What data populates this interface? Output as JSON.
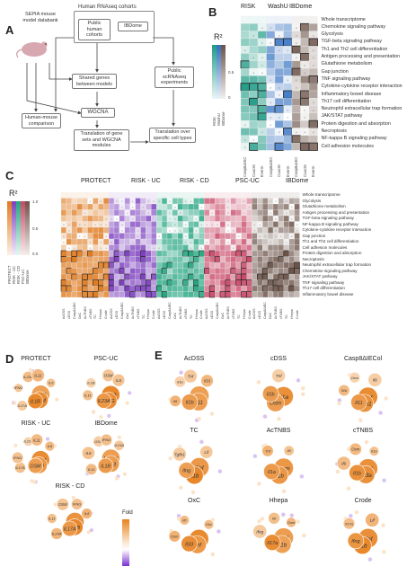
{
  "panel_letters": [
    "A",
    "B",
    "C",
    "D",
    "E"
  ],
  "panel_a": {
    "nodes": {
      "sepia": "SEPIA mouse model databank",
      "human_cohorts_title": "Human RNAseq cohorts",
      "public_human": "Public human cohorts",
      "ibdome": "IBDome",
      "shared_genes": "Shared genes between models",
      "public_scrna": "Public scRNAseq experiments",
      "wgcna": "WGCNA",
      "human_mouse": "Human-mouse comparison",
      "translation_gene_sets": "Translation of gene sets and WGCNA modules",
      "translation_cell_types": "Translation over specific cell types"
    }
  },
  "panel_b": {
    "cohorts": [
      "RISK",
      "WashU",
      "IBDome"
    ],
    "legend_title": "R²",
    "legend_ticks": [
      "0.5",
      "0"
    ],
    "legend_side_labels": [
      "RISK",
      "WashU",
      "IBDome"
    ],
    "rows": [
      "Whole transcriptome",
      "Chemokine signaling pathway",
      "Glycolysis",
      "TGF-beta signaling pathway",
      "Th1 and Th2 cell differentiation",
      "Antigen processing and presentation",
      "Glutathione metabolism",
      "Gap junction",
      "TNF signaling pathway",
      "Cytokine-cytokine receptor interaction",
      "Inflammatory bowel disease",
      "Th17 cell differentiation",
      "Neutrophil extracellular trap formation",
      "JAK/STAT pathway",
      "Protein digestion and absorption",
      "Necroptosis",
      "NF-kappa B signaling pathway",
      "Cell adhesion molecules"
    ],
    "columns": [
      "Casp8ΔIEC",
      "Cuxcr6",
      "Everm",
      "Casp8ΔIEC",
      "Cuxcr6",
      "Everm",
      "Casp8ΔIEC",
      "Cuxcr6",
      "Everm"
    ]
  },
  "panel_c": {
    "cohorts": [
      "PROTECT",
      "RISK - UC",
      "RISK - CD",
      "PSC-UC",
      "IBDome"
    ],
    "legend_title": "R²",
    "legend_ticks": [
      "1.0",
      "0.5",
      "0.0"
    ],
    "legend_side_labels": [
      "PROTECT",
      "RISK - UC",
      "RISK - CD",
      "PSC-UC",
      "IBDome"
    ],
    "rows": [
      "Whole transcriptome",
      "Glycolysis",
      "Glutathione metabolism",
      "Antigen processing and presentation",
      "TGF-beta signaling pathway",
      "NF-kappa B signaling pathway",
      "Cytokine-cytokine receptor interaction",
      "Gap junction",
      "Th1 and Th2 cell differentiation",
      "Cell adhesion molecules",
      "Protein digestion and absorption",
      "Necroptosis",
      "Neutrophil extracellular trap formation",
      "Chemokine signaling pathway",
      "JAK/STAT pathway",
      "TNF signaling pathway",
      "Th17 cell differentiation",
      "Inflammatory bowel disease"
    ],
    "columns": [
      "AcDSS",
      "cDSS",
      "Casp8ΔIEC",
      "OxC",
      "AcTNBS",
      "cTNBS",
      "TC",
      "Hhepa",
      "Crode"
    ]
  },
  "panel_d": {
    "cohorts": [
      {
        "title": "PROTECT",
        "genes": [
          "IL13",
          "OSM",
          "IL1B",
          "IL17A",
          "IFNG",
          "IL23A",
          "IL11",
          "IL6"
        ]
      },
      {
        "title": "PSC-UC",
        "genes": [
          "IL13",
          "IFNG",
          "IL23A",
          "IL11",
          "IL1B",
          "OSM",
          "IL6"
        ]
      },
      {
        "title": "RISK - UC",
        "genes": [
          "IL13",
          "IL1B",
          "OSM",
          "IL17A",
          "IFNG",
          "IL23A",
          "IL11",
          "IL6"
        ]
      },
      {
        "title": "IBDome",
        "genes": [
          "IL17A",
          "IL13",
          "IL1B",
          "IL11",
          "IL6",
          "OSM",
          "IFNG",
          "IL23A"
        ]
      },
      {
        "title": "RISK - CD",
        "genes": [
          "IL13",
          "IL1B",
          "IL17A",
          "IL23A",
          "IL11",
          "OSM",
          "IFNG",
          "IL6"
        ]
      }
    ],
    "legend_title": "Fold"
  },
  "panel_e": {
    "models": [
      {
        "title": "AcDSS",
        "genes": [
          "Osm",
          "Il11",
          "Il1b",
          "Il6",
          "Il1a",
          "Tnf",
          "Il33"
        ]
      },
      {
        "title": "cDSS",
        "genes": [
          "Il1a",
          "Osm",
          "Il1b",
          "Tnf"
        ]
      },
      {
        "title": "Casp8ΔIECol",
        "genes": [
          "Tnf",
          "Tgfb1",
          "Il11",
          "Il1b",
          "Osm",
          "Il6"
        ]
      },
      {
        "title": "TC",
        "genes": [
          "Tnf",
          "Il1b",
          "Ifng",
          "Tgfb1",
          "Lif"
        ]
      },
      {
        "title": "AcTNBS",
        "genes": [
          "Osm",
          "Il1b",
          "Il1a",
          "Tnf",
          "Il6"
        ]
      },
      {
        "title": "cTNBS",
        "genes": [
          "Tnf",
          "Il23a",
          "Il1b",
          "Il6",
          "Osm",
          "Il1a"
        ]
      },
      {
        "title": "OxC",
        "genes": [
          "Il11",
          "Tnf",
          "Il33",
          "Osm",
          "Il6",
          "Il1a"
        ]
      },
      {
        "title": "Hhepa",
        "genes": [
          "Tnf",
          "Il1b",
          "Il17a",
          "Ifng",
          "Il6",
          "Osm"
        ]
      },
      {
        "title": "Crode",
        "genes": [
          "Tnf",
          "Il1b",
          "Ifng",
          "Il17a",
          "Lif"
        ]
      }
    ]
  },
  "colors": {
    "orange": "#e8872a",
    "purple": "#8a4fc2",
    "green": "#2bb38a",
    "pink": "#d9607a",
    "brown": "#8a6a5a",
    "teal": "#3fb6a6",
    "blue": "#3a78c2"
  }
}
